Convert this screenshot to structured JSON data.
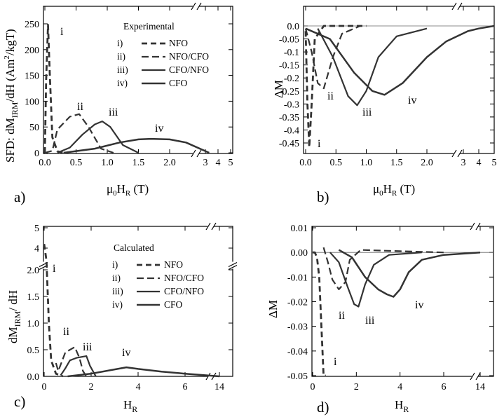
{
  "chart_data": [
    {
      "panel": "a)",
      "type": "line",
      "ylabel_main": "SFD: dM",
      "ylabel_sub": "IRM",
      "ylabel_rest": "/dH (Am",
      "ylabel_sup": "2",
      "ylabel_end": "/kgT)",
      "xlabel_mu": "μ",
      "xlabel_0": "0",
      "xlabel_H": "H",
      "xlabel_R": "R",
      "xlabel_unit": " (T)",
      "yticks": [
        "0",
        "50",
        "100",
        "150",
        "200",
        "250"
      ],
      "xticks": [
        "0.0",
        "0.5",
        "1.0",
        "1.5",
        "2.0",
        "3",
        "4",
        "5"
      ],
      "legend_title": "Experimental",
      "legend": [
        {
          "tag": "i)",
          "name": "NFO",
          "style": "dash-thick"
        },
        {
          "tag": "ii)",
          "name": "NFO/CFO",
          "style": "dash"
        },
        {
          "tag": "iii)",
          "name": "CFO/NFO",
          "style": "solid"
        },
        {
          "tag": "iv)",
          "name": "CFO",
          "style": "solid-thick"
        }
      ],
      "curve_labels": [
        "i",
        "ii",
        "iii",
        "iv"
      ],
      "series": [
        {
          "name": "i) NFO",
          "x": [
            0.0,
            0.02,
            0.05,
            0.08,
            0.12,
            0.2,
            0.3
          ],
          "y": [
            0,
            140,
            248,
            150,
            30,
            3,
            0
          ]
        },
        {
          "name": "ii) NFO/CFO",
          "x": [
            0.0,
            0.12,
            0.2,
            0.4,
            0.55,
            0.7,
            0.9,
            1.1
          ],
          "y": [
            0,
            4,
            45,
            70,
            75,
            50,
            8,
            0
          ]
        },
        {
          "name": "iii) CFO/NFO",
          "x": [
            0.2,
            0.4,
            0.6,
            0.8,
            0.92,
            1.05,
            1.25,
            1.5
          ],
          "y": [
            0,
            10,
            35,
            55,
            61,
            50,
            15,
            0
          ]
        },
        {
          "name": "iv) CFO",
          "x": [
            0.3,
            0.8,
            1.2,
            1.5,
            1.7,
            2.0,
            2.5,
            3.3
          ],
          "y": [
            0,
            8,
            20,
            26,
            27,
            26,
            20,
            0
          ]
        }
      ]
    },
    {
      "panel": "b)",
      "type": "line",
      "ylabel": "ΔM",
      "xlabel_mu": "μ",
      "xlabel_0": "0",
      "xlabel_H": "H",
      "xlabel_R": "R",
      "xlabel_unit": " (T)",
      "yticks": [
        "0.0",
        "-0.05",
        "-0.1",
        "-0.15",
        "-0.2",
        "-0.25",
        "-0.3",
        "-0.35",
        "-0.4",
        "-0.45"
      ],
      "xticks": [
        "0.0",
        "0.5",
        "1.0",
        "1.5",
        "2.0",
        "3",
        "4",
        "5"
      ],
      "curve_labels": [
        "i",
        "ii",
        "iii",
        "iv"
      ],
      "series": [
        {
          "name": "i) NFO",
          "x": [
            0.0,
            0.03,
            0.06,
            0.1,
            0.15,
            0.3,
            1.0
          ],
          "y": [
            -0.02,
            -0.3,
            -0.47,
            -0.3,
            -0.05,
            0,
            0
          ]
        },
        {
          "name": "ii) NFO/CFO",
          "x": [
            0.0,
            0.1,
            0.2,
            0.3,
            0.45,
            0.6,
            0.9
          ],
          "y": [
            -0.01,
            -0.1,
            -0.22,
            -0.24,
            -0.12,
            -0.03,
            0
          ]
        },
        {
          "name": "iii) CFO/NFO",
          "x": [
            0.2,
            0.45,
            0.7,
            0.85,
            1.0,
            1.2,
            1.5,
            2.0
          ],
          "y": [
            -0.01,
            -0.12,
            -0.27,
            -0.305,
            -0.25,
            -0.12,
            -0.04,
            -0.01
          ]
        },
        {
          "name": "iv) CFO",
          "x": [
            0.0,
            0.4,
            0.8,
            1.1,
            1.3,
            1.6,
            2.0,
            2.5,
            3.3,
            4.0,
            5.0
          ],
          "y": [
            -0.01,
            -0.05,
            -0.18,
            -0.25,
            -0.265,
            -0.22,
            -0.12,
            -0.06,
            -0.02,
            -0.01,
            0
          ]
        }
      ]
    },
    {
      "panel": "c)",
      "type": "line",
      "ylabel_main": "dM",
      "ylabel_sub": "IRM",
      "ylabel_end": "/ dH",
      "xlabel_H": "H",
      "xlabel_R": "R",
      "yticks": [
        "0.0",
        "0.5",
        "1.0",
        "1.5",
        "2.0",
        "4",
        "5"
      ],
      "xticks": [
        "0",
        "2",
        "4",
        "6",
        "14"
      ],
      "legend_title": "Calculated",
      "legend": [
        {
          "tag": "i)",
          "name": "NFO",
          "style": "dash-thick"
        },
        {
          "tag": "ii)",
          "name": "NFO/CFO",
          "style": "dash"
        },
        {
          "tag": "iii)",
          "name": "CFO/NFO",
          "style": "solid"
        },
        {
          "tag": "iv)",
          "name": "CFO",
          "style": "solid-thick"
        }
      ],
      "curve_labels": [
        "i",
        "ii",
        "iii",
        "iv"
      ],
      "series": [
        {
          "name": "i) NFO",
          "x": [
            0.0,
            0.1,
            0.2,
            0.3,
            0.5,
            0.8
          ],
          "y": [
            4.2,
            2.2,
            1.0,
            0.3,
            0.05,
            0
          ]
        },
        {
          "name": "ii) NFO/CFO",
          "x": [
            0.5,
            0.6,
            0.9,
            1.3,
            1.5,
            1.65,
            1.8
          ],
          "y": [
            0.25,
            0.1,
            0.45,
            0.55,
            0.35,
            0.1,
            0
          ]
        },
        {
          "name": "iii) CFO/NFO",
          "x": [
            0.7,
            0.9,
            1.1,
            1.4,
            1.8,
            1.95,
            2.2
          ],
          "y": [
            0.02,
            0.15,
            0.3,
            0.35,
            0.38,
            0.2,
            0
          ]
        },
        {
          "name": "iv) CFO",
          "x": [
            1.0,
            2.0,
            3.0,
            3.5,
            4.0,
            5.0,
            6.0,
            7.0,
            14.0
          ],
          "y": [
            0,
            0.05,
            0.13,
            0.17,
            0.14,
            0.09,
            0.05,
            0.02,
            0.0
          ]
        }
      ]
    },
    {
      "panel": "d)",
      "type": "line",
      "ylabel": "ΔM",
      "xlabel_H": "H",
      "xlabel_R": "R",
      "yticks": [
        "0.01",
        "0.00",
        "-0.01",
        "-0.02",
        "-0.03",
        "-0.04",
        "-0.05"
      ],
      "xticks": [
        "0",
        "2",
        "4",
        "6",
        "14"
      ],
      "curve_labels": [
        "i",
        "ii",
        "iii",
        "iv"
      ],
      "series": [
        {
          "name": "i) NFO",
          "x": [
            0.0,
            0.1,
            0.2,
            0.3,
            0.4,
            0.5,
            0.6
          ],
          "y": [
            0.0,
            0.0,
            -0.002,
            -0.01,
            -0.03,
            -0.05,
            -0.05
          ]
        },
        {
          "name": "ii) NFO/CFO",
          "x": [
            0.5,
            0.7,
            0.9,
            1.2,
            1.5,
            1.7,
            2.2,
            4.0,
            6.0
          ],
          "y": [
            0.002,
            -0.004,
            -0.011,
            -0.015,
            -0.012,
            -0.003,
            0.001,
            0.0005,
            0
          ]
        },
        {
          "name": "iii) CFO/NFO",
          "x": [
            0.8,
            1.2,
            1.6,
            1.9,
            2.1,
            2.4,
            2.8,
            3.5,
            5.0
          ],
          "y": [
            0.0,
            -0.004,
            -0.014,
            -0.021,
            -0.022,
            -0.013,
            -0.005,
            -0.001,
            0
          ]
        },
        {
          "name": "iv) CFO",
          "x": [
            1.2,
            1.8,
            2.4,
            3.0,
            3.4,
            3.7,
            4.0,
            4.4,
            5.0,
            6.0,
            14.0
          ],
          "y": [
            0.001,
            -0.002,
            -0.01,
            -0.015,
            -0.017,
            -0.018,
            -0.015,
            -0.008,
            -0.003,
            -0.001,
            0
          ]
        }
      ]
    }
  ]
}
